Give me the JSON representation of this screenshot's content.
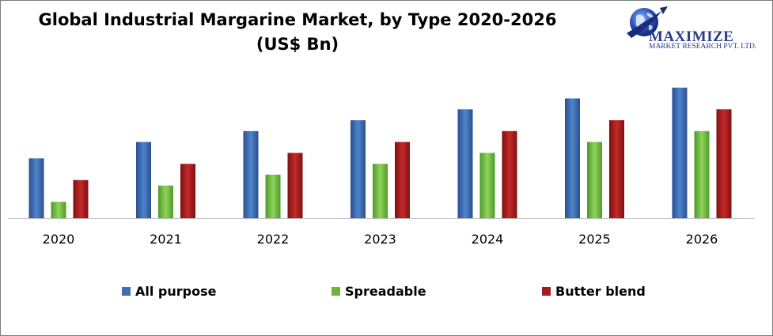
{
  "chart_data": {
    "type": "bar",
    "title": "Global Industrial Margarine Market, by Type 2020-2026",
    "title_line2": "(US$ Bn)",
    "categories": [
      "2020",
      "2021",
      "2022",
      "2023",
      "2024",
      "2025",
      "2026"
    ],
    "series": [
      {
        "name": "All purpose",
        "color": "#3f6fb0",
        "values": [
          5.5,
          7.0,
          8.0,
          9.0,
          10.0,
          11.0,
          12.0
        ]
      },
      {
        "name": "Spreadable",
        "color": "#6db33f",
        "values": [
          1.5,
          3.0,
          4.0,
          5.0,
          6.0,
          7.0,
          8.0
        ]
      },
      {
        "name": "Butter blend",
        "color": "#a61c1c",
        "values": [
          3.5,
          5.0,
          6.0,
          7.0,
          8.0,
          9.0,
          10.0
        ]
      }
    ],
    "xlabel": "",
    "ylabel": "",
    "ylim": [
      0,
      13
    ],
    "grid": false,
    "legend_position": "bottom"
  },
  "logo": {
    "name": "MAXIMIZE",
    "subtitle": "MARKET RESEARCH PVT. LTD."
  }
}
